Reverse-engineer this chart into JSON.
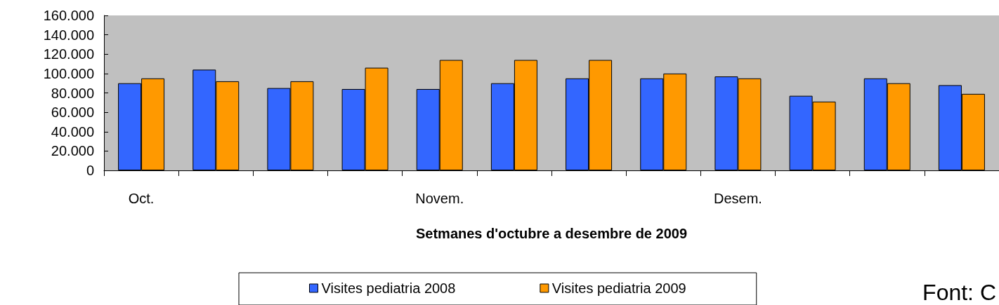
{
  "chart_data": {
    "type": "bar",
    "xlabel": "Setmanes d'octubre a desembre de 2009",
    "categories": [
      "Oct.",
      null,
      null,
      null,
      "Novem.",
      null,
      null,
      null,
      "Desem.",
      null,
      null,
      null
    ],
    "series": [
      {
        "name": "Visites pediatria 2008",
        "color": "#3366ff",
        "values": [
          90000,
          104000,
          85000,
          84000,
          84000,
          90000,
          95000,
          95000,
          97000,
          77000,
          95000,
          88000
        ]
      },
      {
        "name": "Visites pediatria 2009",
        "color": "#ff9900",
        "values": [
          95000,
          92000,
          92000,
          106000,
          114000,
          114000,
          114000,
          100000,
          95000,
          71000,
          90000,
          79000
        ]
      }
    ],
    "ylim": [
      0,
      160000
    ],
    "yticks": [
      {
        "value": 0,
        "label": "0"
      },
      {
        "value": 20000,
        "label": "20.000"
      },
      {
        "value": 40000,
        "label": "40.000"
      },
      {
        "value": 60000,
        "label": "60.000"
      },
      {
        "value": 80000,
        "label": "80.000"
      },
      {
        "value": 100000,
        "label": "100.000"
      },
      {
        "value": 120000,
        "label": "120.000"
      },
      {
        "value": 140000,
        "label": "140.000"
      },
      {
        "value": 160000,
        "label": "160.000"
      }
    ],
    "grid": false,
    "legend": "bottom",
    "annotations": [
      "Font: C"
    ]
  }
}
